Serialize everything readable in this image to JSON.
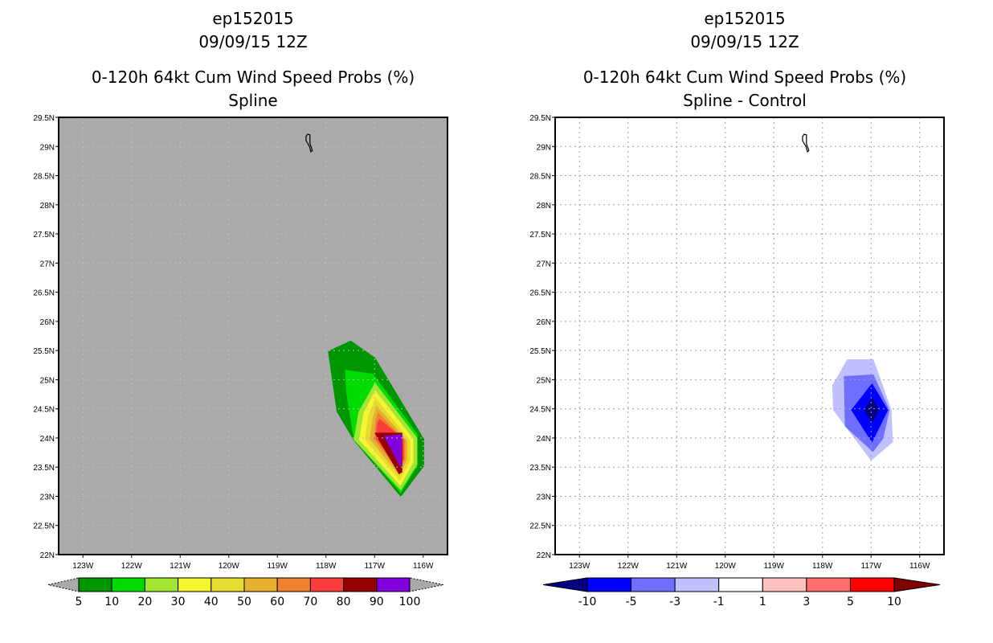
{
  "chart_data": [
    {
      "type": "heatmap",
      "title_lines": [
        "ep152015",
        "09/09/15 12Z",
        "0-120h 64kt Cum Wind Speed Probs (%)",
        "Spline"
      ],
      "xlabel": "",
      "ylabel": "",
      "xlim": [
        -123.5,
        -115.5
      ],
      "ylim": [
        22,
        29.5
      ],
      "x_ticks": [
        {
          "v": -123,
          "label": "123W"
        },
        {
          "v": -122,
          "label": "122W"
        },
        {
          "v": -121,
          "label": "121W"
        },
        {
          "v": -120,
          "label": "120W"
        },
        {
          "v": -119,
          "label": "119W"
        },
        {
          "v": -118,
          "label": "118W"
        },
        {
          "v": -117,
          "label": "117W"
        },
        {
          "v": -116,
          "label": "116W"
        }
      ],
      "y_ticks": [
        {
          "v": 22,
          "label": "22N"
        },
        {
          "v": 22.5,
          "label": "22.5N"
        },
        {
          "v": 23,
          "label": "23N"
        },
        {
          "v": 23.5,
          "label": "23.5N"
        },
        {
          "v": 24,
          "label": "24N"
        },
        {
          "v": 24.5,
          "label": "24.5N"
        },
        {
          "v": 25,
          "label": "25N"
        },
        {
          "v": 25.5,
          "label": "25.5N"
        },
        {
          "v": 26,
          "label": "26N"
        },
        {
          "v": 26.5,
          "label": "26.5N"
        },
        {
          "v": 27,
          "label": "27N"
        },
        {
          "v": 27.5,
          "label": "27.5N"
        },
        {
          "v": 28,
          "label": "28N"
        },
        {
          "v": 28.5,
          "label": "28.5N"
        },
        {
          "v": 29,
          "label": "29N"
        },
        {
          "v": 29.5,
          "label": "29.5N"
        }
      ],
      "background": "#aaaaaa",
      "grid": true,
      "legend": {
        "placement": "bottom",
        "labels": [
          "5",
          "10",
          "20",
          "30",
          "40",
          "50",
          "60",
          "70",
          "80",
          "90",
          "100"
        ],
        "colors": [
          "#009600",
          "#00dc00",
          "#a0e632",
          "#f5f532",
          "#e6dc32",
          "#e6af2d",
          "#f0822d",
          "#fa3c3c",
          "#960000",
          "#8200dc"
        ],
        "end_colors": [
          "#aaaaaa",
          "#aaaaaa"
        ]
      },
      "contours": [
        {
          "level": 5,
          "color": "#009600",
          "points": [
            [
              -117.96,
              25.49
            ],
            [
              -117.49,
              25.67
            ],
            [
              -116.99,
              25.38
            ],
            [
              -115.98,
              23.98
            ],
            [
              -115.98,
              23.52
            ],
            [
              -116.46,
              22.99
            ],
            [
              -117.43,
              23.96
            ],
            [
              -117.78,
              24.45
            ]
          ]
        },
        {
          "level": 10,
          "color": "#00dc00",
          "points": [
            [
              -117.61,
              25.17
            ],
            [
              -117.03,
              25.1
            ],
            [
              -116.12,
              24.07
            ],
            [
              -116.12,
              23.52
            ],
            [
              -116.46,
              23.05
            ],
            [
              -117.43,
              23.98
            ],
            [
              -117.58,
              24.76
            ]
          ]
        },
        {
          "level": 20,
          "color": "#a0e632",
          "points": [
            [
              -116.99,
              24.95
            ],
            [
              -116.12,
              24.0
            ],
            [
              -116.12,
              23.55
            ],
            [
              -116.46,
              23.1
            ],
            [
              -117.43,
              23.97
            ],
            [
              -117.33,
              24.45
            ]
          ]
        },
        {
          "level": 30,
          "color": "#f5f532",
          "points": [
            [
              -116.99,
              24.82
            ],
            [
              -116.2,
              23.98
            ],
            [
              -116.2,
              23.58
            ],
            [
              -116.47,
              23.18
            ],
            [
              -117.32,
              23.97
            ],
            [
              -117.23,
              24.42
            ]
          ]
        },
        {
          "level": 40,
          "color": "#e6dc32",
          "points": [
            [
              -116.98,
              24.69
            ],
            [
              -116.27,
              23.96
            ],
            [
              -116.27,
              23.6
            ],
            [
              -116.48,
              23.27
            ],
            [
              -117.2,
              23.97
            ],
            [
              -117.13,
              24.38
            ]
          ]
        },
        {
          "level": 50,
          "color": "#e6af2d",
          "points": [
            [
              -116.96,
              24.56
            ],
            [
              -116.33,
              23.95
            ],
            [
              -116.33,
              23.63
            ],
            [
              -116.49,
              23.35
            ],
            [
              -117.1,
              23.98
            ],
            [
              -117.04,
              24.34
            ]
          ]
        },
        {
          "level": 60,
          "color": "#f0822d",
          "points": [
            [
              -116.93,
              24.44
            ],
            [
              -116.37,
              23.95
            ],
            [
              -116.37,
              23.63
            ],
            [
              -116.5,
              23.42
            ],
            [
              -117.02,
              23.99
            ],
            [
              -116.98,
              24.3
            ]
          ]
        },
        {
          "level": 70,
          "color": "#fa3c3c",
          "points": [
            [
              -116.9,
              24.33
            ],
            [
              -116.4,
              23.98
            ],
            [
              -116.4,
              23.64
            ],
            [
              -116.5,
              23.45
            ],
            [
              -116.98,
              24.0
            ],
            [
              -116.95,
              24.24
            ]
          ]
        },
        {
          "level": 80,
          "color": "#960000",
          "points": [
            [
              -117.0,
              24.09
            ],
            [
              -116.43,
              24.09
            ],
            [
              -116.43,
              23.41
            ],
            [
              -116.5,
              23.38
            ]
          ]
        },
        {
          "level": 90,
          "color": "#8200dc",
          "points": [
            [
              -116.81,
              24.03
            ],
            [
              -116.43,
              24.07
            ],
            [
              -116.45,
              23.47
            ]
          ]
        }
      ]
    },
    {
      "type": "heatmap",
      "title_lines": [
        "ep152015",
        "09/09/15 12Z",
        "0-120h 64kt Cum Wind Speed Probs (%)",
        "Spline - Control"
      ],
      "xlabel": "",
      "ylabel": "",
      "xlim": [
        -123.5,
        -115.5
      ],
      "ylim": [
        22,
        29.5
      ],
      "x_ticks": [
        {
          "v": -123,
          "label": "123W"
        },
        {
          "v": -122,
          "label": "122W"
        },
        {
          "v": -121,
          "label": "121W"
        },
        {
          "v": -120,
          "label": "120W"
        },
        {
          "v": -119,
          "label": "119W"
        },
        {
          "v": -118,
          "label": "118W"
        },
        {
          "v": -117,
          "label": "117W"
        },
        {
          "v": -116,
          "label": "116W"
        }
      ],
      "y_ticks": [
        {
          "v": 22,
          "label": "22N"
        },
        {
          "v": 22.5,
          "label": "22.5N"
        },
        {
          "v": 23,
          "label": "23N"
        },
        {
          "v": 23.5,
          "label": "23.5N"
        },
        {
          "v": 24,
          "label": "24N"
        },
        {
          "v": 24.5,
          "label": "24.5N"
        },
        {
          "v": 25,
          "label": "25N"
        },
        {
          "v": 25.5,
          "label": "25.5N"
        },
        {
          "v": 26,
          "label": "26N"
        },
        {
          "v": 26.5,
          "label": "26.5N"
        },
        {
          "v": 27,
          "label": "27N"
        },
        {
          "v": 27.5,
          "label": "27.5N"
        },
        {
          "v": 28,
          "label": "28N"
        },
        {
          "v": 28.5,
          "label": "28.5N"
        },
        {
          "v": 29,
          "label": "29N"
        },
        {
          "v": 29.5,
          "label": "29.5N"
        }
      ],
      "background": "#ffffff",
      "grid": true,
      "legend": {
        "placement": "bottom",
        "labels": [
          "-10",
          "-5",
          "-3",
          "-1",
          "1",
          "3",
          "5",
          "10"
        ],
        "colors": [
          "#0000ff",
          "#6e6eff",
          "#c0c0ff",
          "#ffffff",
          "#ffc0c0",
          "#ff6e6e",
          "#ff0000"
        ],
        "end_colors": [
          "#000080",
          "#800000"
        ]
      },
      "contours": [
        {
          "level": -1,
          "color": "#c0c0ff",
          "points": [
            [
              -117.49,
              25.35
            ],
            [
              -116.95,
              25.35
            ],
            [
              -116.58,
              24.48
            ],
            [
              -116.55,
              23.93
            ],
            [
              -117.0,
              23.61
            ],
            [
              -117.78,
              24.48
            ],
            [
              -117.8,
              24.9
            ]
          ]
        },
        {
          "level": -3,
          "color": "#6e6eff",
          "points": [
            [
              -117.56,
              25.06
            ],
            [
              -116.95,
              25.09
            ],
            [
              -116.62,
              24.48
            ],
            [
              -116.75,
              23.99
            ],
            [
              -116.96,
              23.76
            ],
            [
              -117.54,
              24.2
            ]
          ]
        },
        {
          "level": -5,
          "color": "#0000ff",
          "points": [
            [
              -116.98,
              24.94
            ],
            [
              -116.65,
              24.48
            ],
            [
              -116.98,
              23.92
            ],
            [
              -117.41,
              24.48
            ]
          ]
        },
        {
          "level": -10,
          "color": "#000080",
          "points": [
            [
              -116.98,
              24.7
            ],
            [
              -116.83,
              24.48
            ],
            [
              -116.98,
              24.25
            ],
            [
              -117.15,
              24.48
            ]
          ]
        }
      ]
    }
  ],
  "island_outline": [
    [
      -118.38,
      29.21
    ],
    [
      -118.33,
      29.2
    ],
    [
      -118.33,
      29.05
    ],
    [
      -118.28,
      28.93
    ],
    [
      -118.31,
      28.91
    ],
    [
      -118.34,
      29.0
    ],
    [
      -118.41,
      29.1
    ],
    [
      -118.41,
      29.17
    ]
  ]
}
